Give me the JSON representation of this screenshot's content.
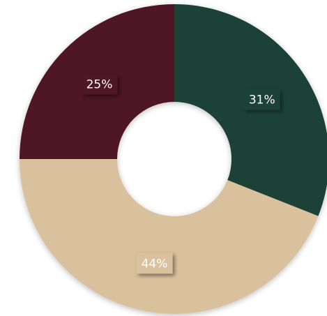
{
  "chart_data": {
    "type": "pie",
    "donut": true,
    "values": [
      31,
      44,
      25
    ],
    "value_labels": [
      "31%",
      "44%",
      "25%"
    ],
    "colors": [
      "#1b4339",
      "#d9c19d",
      "#4f1526"
    ]
  }
}
